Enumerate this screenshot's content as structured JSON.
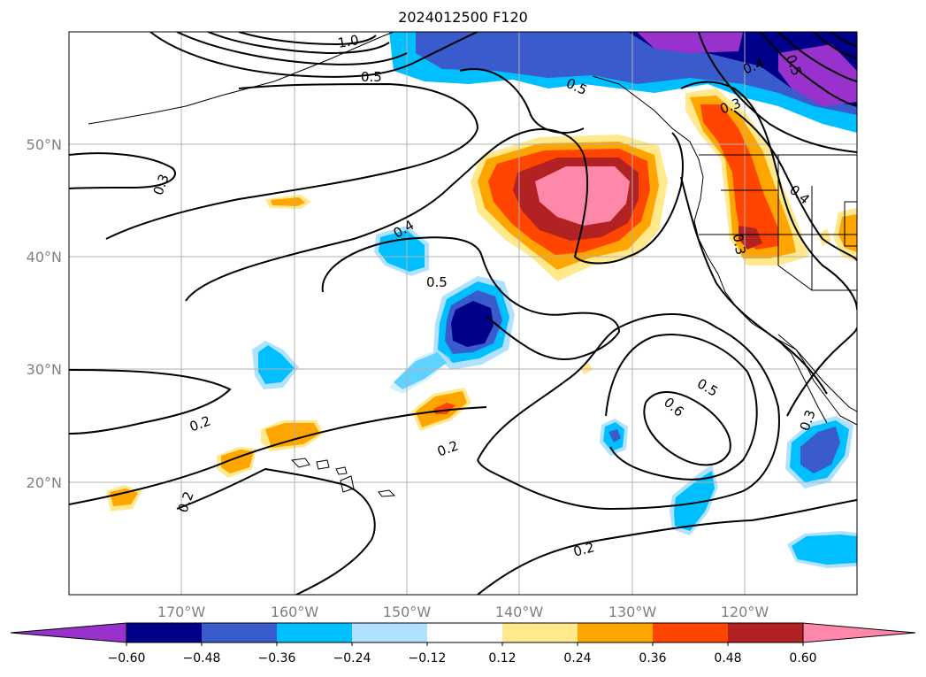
{
  "title": "2024012500 F120",
  "map": {
    "lon_labels": [
      "170°W",
      "160°W",
      "150°W",
      "140°W",
      "130°W",
      "120°W"
    ],
    "lat_labels": [
      "50°N",
      "40°N",
      "30°N",
      "20°N"
    ],
    "contour_labels": [
      {
        "text": "0.3",
        "name": "contour-label-0-3-west"
      },
      {
        "text": "0.4",
        "name": "contour-label-0-4-central"
      },
      {
        "text": "0.5",
        "name": "contour-label-0-5-central"
      },
      {
        "text": "0.2",
        "name": "contour-label-0-2-west"
      },
      {
        "text": "0.2",
        "name": "contour-label-0-2-central"
      },
      {
        "text": "0.2",
        "name": "contour-label-0-2-southwest"
      },
      {
        "text": "0.2",
        "name": "contour-label-0-2-south"
      },
      {
        "text": "0.5",
        "name": "contour-label-0-5-southeast"
      },
      {
        "text": "0.6",
        "name": "contour-label-0-6-southeast"
      },
      {
        "text": "0.3",
        "name": "contour-label-0-3-coast-south"
      },
      {
        "text": "0.3",
        "name": "contour-label-0-3-pnw"
      },
      {
        "text": "0.4",
        "name": "contour-label-0-4-inland"
      },
      {
        "text": "0.3",
        "name": "contour-label-0-3-inland"
      },
      {
        "text": "0.5",
        "name": "contour-label-0-5-north"
      },
      {
        "text": "0.5",
        "name": "contour-label-0-5-gulf"
      },
      {
        "text": "0.4",
        "name": "contour-label-0-4-northeast"
      },
      {
        "text": "1.0",
        "name": "contour-label-1-0-north"
      },
      {
        "text": "0.5",
        "name": "contour-label-0-5-northwest"
      }
    ]
  },
  "colorbar": {
    "ticks": [
      "−0.60",
      "−0.48",
      "−0.36",
      "−0.24",
      "−0.12",
      "0.12",
      "0.24",
      "0.36",
      "0.48",
      "0.60"
    ],
    "colors": [
      "#9932cc",
      "#00008b",
      "#3a5bcc",
      "#00bfff",
      "#b0e2ff",
      "#ffffff",
      "#ffe98c",
      "#ffa500",
      "#ff4500",
      "#b22222",
      "#ff88aa"
    ]
  }
}
